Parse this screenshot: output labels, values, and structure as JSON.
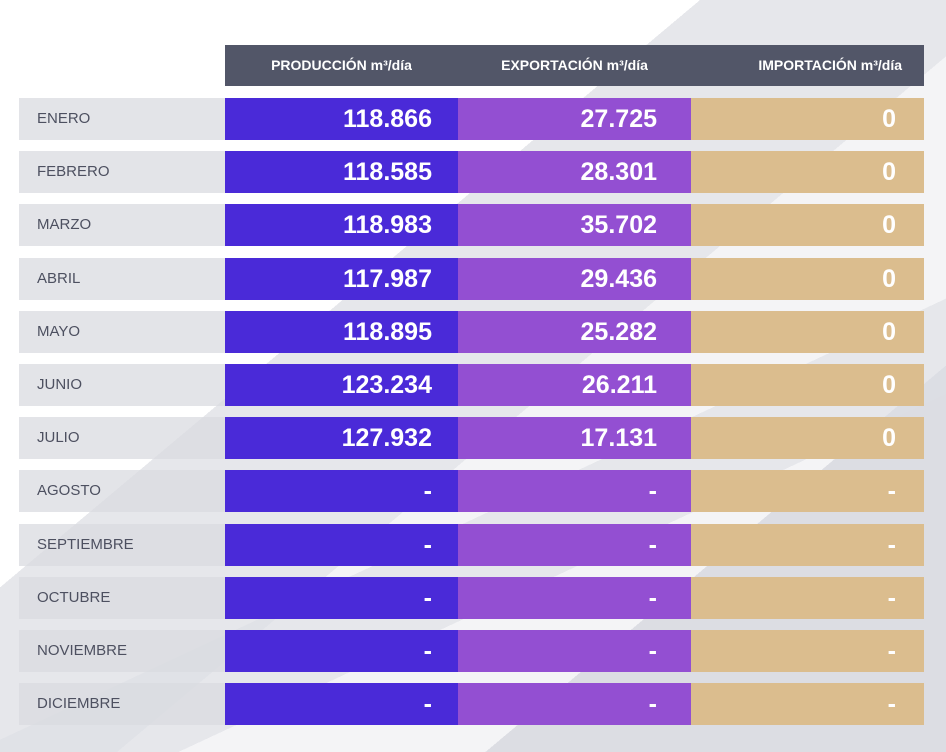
{
  "headers": [
    "PRODUCCIÓN m³/día",
    "EXPORTACIÓN m³/día",
    "IMPORTACIÓN m³/día"
  ],
  "rows": [
    {
      "month": "ENERO",
      "produccion": "118.866",
      "exportacion": "27.725",
      "importacion": "0"
    },
    {
      "month": "FEBRERO",
      "produccion": "118.585",
      "exportacion": "28.301",
      "importacion": "0"
    },
    {
      "month": "MARZO",
      "produccion": "118.983",
      "exportacion": "35.702",
      "importacion": "0"
    },
    {
      "month": "ABRIL",
      "produccion": "117.987",
      "exportacion": "29.436",
      "importacion": "0"
    },
    {
      "month": "MAYO",
      "produccion": "118.895",
      "exportacion": "25.282",
      "importacion": "0"
    },
    {
      "month": "JUNIO",
      "produccion": "123.234",
      "exportacion": "26.211",
      "importacion": "0"
    },
    {
      "month": "JULIO",
      "produccion": "127.932",
      "exportacion": "17.131",
      "importacion": "0"
    },
    {
      "month": "AGOSTO",
      "produccion": "-",
      "exportacion": "-",
      "importacion": "-"
    },
    {
      "month": "SEPTIEMBRE",
      "produccion": "-",
      "exportacion": "-",
      "importacion": "-"
    },
    {
      "month": "OCTUBRE",
      "produccion": "-",
      "exportacion": "-",
      "importacion": "-"
    },
    {
      "month": "NOVIEMBRE",
      "produccion": "-",
      "exportacion": "-",
      "importacion": "-"
    },
    {
      "month": "DICIEMBRE",
      "produccion": "-",
      "exportacion": "-",
      "importacion": "-"
    }
  ],
  "colors": {
    "header": "#525668",
    "produccion": "#4a2ad8",
    "exportacion": "#934fd2",
    "importacion": "#dbbd8e"
  }
}
